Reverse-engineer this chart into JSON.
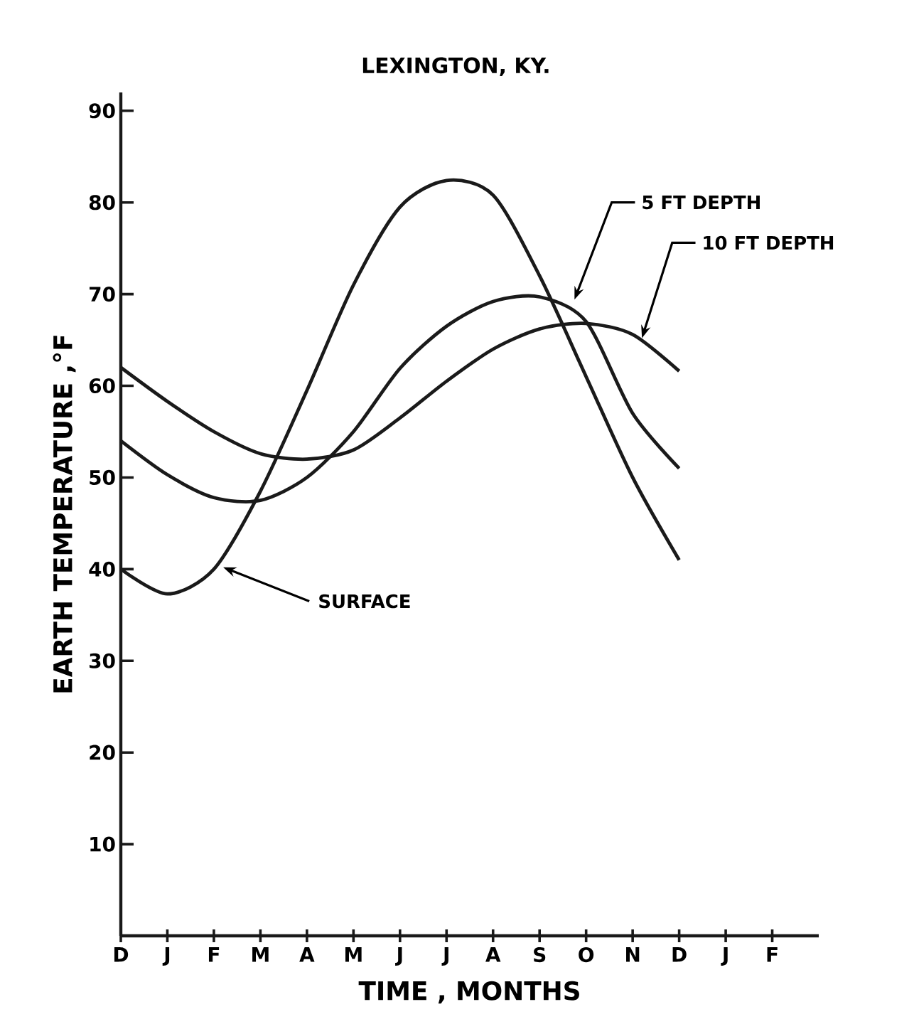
{
  "chart_data": {
    "type": "line",
    "title": "LEXINGTON, KY.",
    "xlabel": "TIME , MONTHS",
    "ylabel": "EARTH TEMPERATURE ,°F",
    "categories": [
      "D",
      "J",
      "F",
      "M",
      "A",
      "M",
      "J",
      "J",
      "A",
      "S",
      "O",
      "N",
      "D",
      "J",
      "F"
    ],
    "ylim": [
      0,
      92
    ],
    "yticks": [
      10,
      20,
      30,
      40,
      50,
      60,
      70,
      80,
      90
    ],
    "grid": false,
    "legend": false,
    "marker": "none",
    "line_style": "solid",
    "series": [
      {
        "name": "SURFACE",
        "color": "#1a1a1a",
        "values": [
          40,
          37.3,
          40,
          48.5,
          59.5,
          71,
          79.5,
          82.4,
          80.8,
          72,
          61,
          50,
          41,
          null,
          null
        ]
      },
      {
        "name": "5 FT DEPTH",
        "color": "#1a1a1a",
        "values": [
          54,
          50.3,
          47.8,
          47.5,
          50,
          55,
          61.9,
          66.5,
          69.2,
          69.7,
          67,
          57,
          51,
          null,
          null
        ]
      },
      {
        "name": "10 FT DEPTH",
        "color": "#1a1a1a",
        "values": [
          62,
          58.3,
          55,
          52.6,
          52,
          53,
          56.5,
          60.5,
          64,
          66.2,
          66.8,
          65.6,
          61.6,
          null,
          null
        ]
      }
    ]
  }
}
